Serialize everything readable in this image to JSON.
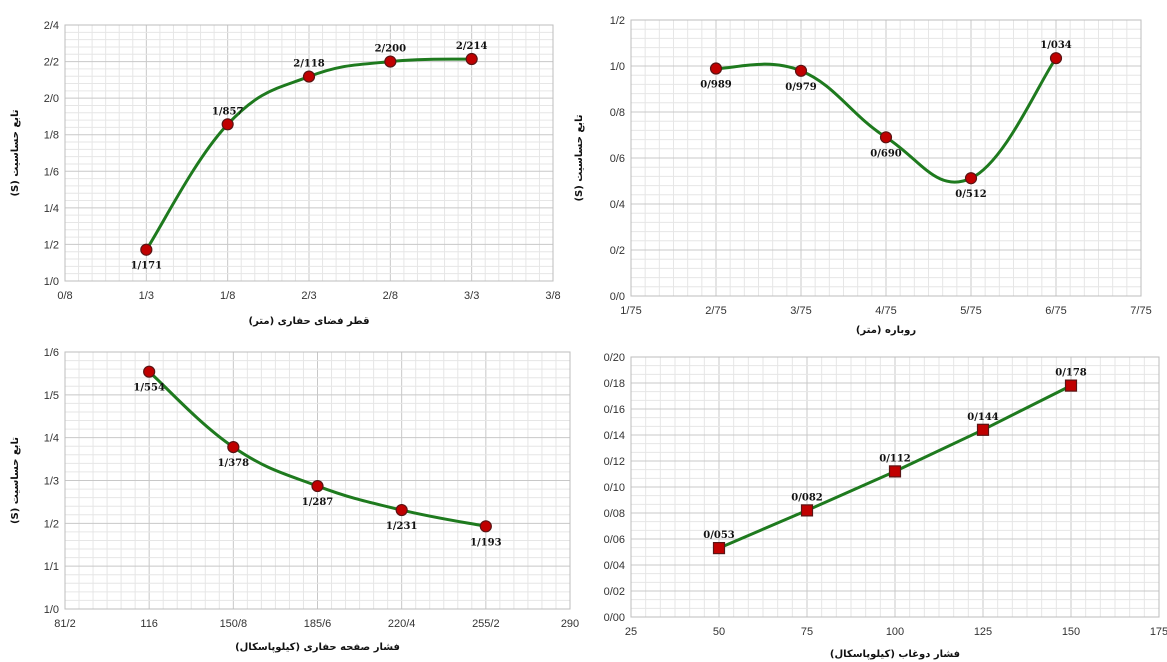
{
  "chart_data": [
    {
      "type": "line",
      "smooth": true,
      "marker": "circle",
      "color": "#1e7a1e",
      "marker_color": "#c00000",
      "x_ticks": [
        "0/8",
        "1/3",
        "1/8",
        "2/3",
        "2/8",
        "3/3",
        "3/8"
      ],
      "xlim": [
        0.8,
        3.8
      ],
      "y_ticks": [
        "1/0",
        "1/2",
        "1/4",
        "1/6",
        "1/8",
        "2/0",
        "2/2",
        "2/4"
      ],
      "ylim": [
        1.0,
        2.4
      ],
      "xlabel": "قطر فضای حفاری (متر)",
      "ylabel": "تابع حساسیت (S)",
      "grid": true,
      "points": [
        {
          "x": 1.3,
          "y": 1.171,
          "label": "1/171",
          "pos": "below"
        },
        {
          "x": 1.8,
          "y": 1.857,
          "label": "1/857",
          "pos": "above"
        },
        {
          "x": 2.3,
          "y": 2.118,
          "label": "2/118",
          "pos": "above"
        },
        {
          "x": 2.8,
          "y": 2.2,
          "label": "2/200",
          "pos": "above"
        },
        {
          "x": 3.3,
          "y": 2.214,
          "label": "2/214",
          "pos": "above"
        }
      ]
    },
    {
      "type": "line",
      "smooth": true,
      "marker": "circle",
      "color": "#1e7a1e",
      "marker_color": "#c00000",
      "x_ticks": [
        "1/75",
        "2/75",
        "3/75",
        "4/75",
        "5/75",
        "6/75",
        "7/75"
      ],
      "xlim": [
        1.75,
        7.75
      ],
      "y_ticks": [
        "0/0",
        "0/2",
        "0/4",
        "0/6",
        "0/8",
        "1/0",
        "1/2"
      ],
      "ylim": [
        0.0,
        1.2
      ],
      "xlabel": "روباره (متر)",
      "ylabel": "تابع حساسیت (S)",
      "grid": true,
      "points": [
        {
          "x": 2.75,
          "y": 0.989,
          "label": "0/989",
          "pos": "below"
        },
        {
          "x": 3.75,
          "y": 0.979,
          "label": "0/979",
          "pos": "below"
        },
        {
          "x": 4.75,
          "y": 0.69,
          "label": "0/690",
          "pos": "below"
        },
        {
          "x": 5.75,
          "y": 0.512,
          "label": "0/512",
          "pos": "below"
        },
        {
          "x": 6.75,
          "y": 1.034,
          "label": "1/034",
          "pos": "above"
        }
      ]
    },
    {
      "type": "line",
      "smooth": true,
      "marker": "circle",
      "color": "#1e7a1e",
      "marker_color": "#c00000",
      "x_ticks": [
        "81/2",
        "116",
        "150/8",
        "185/6",
        "220/4",
        "255/2",
        "290"
      ],
      "xlim": [
        81.2,
        290
      ],
      "y_ticks": [
        "1/0",
        "1/1",
        "1/2",
        "1/3",
        "1/4",
        "1/5",
        "1/6"
      ],
      "ylim": [
        1.0,
        1.6
      ],
      "xlabel": "فشار صفحه حفاری (کیلوپاسکال)",
      "ylabel": "تابع حساسیت (S)",
      "grid": true,
      "points": [
        {
          "x": 116,
          "y": 1.554,
          "label": "1/554",
          "pos": "below"
        },
        {
          "x": 150.8,
          "y": 1.378,
          "label": "1/378",
          "pos": "below"
        },
        {
          "x": 185.6,
          "y": 1.287,
          "label": "1/287",
          "pos": "below"
        },
        {
          "x": 220.4,
          "y": 1.231,
          "label": "1/231",
          "pos": "below"
        },
        {
          "x": 255.2,
          "y": 1.193,
          "label": "1/193",
          "pos": "below"
        }
      ]
    },
    {
      "type": "line",
      "smooth": false,
      "marker": "square",
      "color": "#1e7a1e",
      "marker_color": "#c00000",
      "x_ticks": [
        "25",
        "50",
        "75",
        "100",
        "125",
        "150",
        "175"
      ],
      "xlim": [
        25,
        175
      ],
      "y_ticks": [
        "0/00",
        "0/02",
        "0/04",
        "0/06",
        "0/08",
        "0/10",
        "0/12",
        "0/14",
        "0/16",
        "0/18",
        "0/20"
      ],
      "ylim": [
        0.0,
        0.2
      ],
      "xlabel": "فشار دوغاب (کیلوپاسکال)",
      "ylabel": "",
      "grid": true,
      "points": [
        {
          "x": 50,
          "y": 0.053,
          "label": "0/053",
          "pos": "above"
        },
        {
          "x": 75,
          "y": 0.082,
          "label": "0/082",
          "pos": "above"
        },
        {
          "x": 100,
          "y": 0.112,
          "label": "0/112",
          "pos": "above"
        },
        {
          "x": 125,
          "y": 0.144,
          "label": "0/144",
          "pos": "above"
        },
        {
          "x": 150,
          "y": 0.178,
          "label": "0/178",
          "pos": "above"
        }
      ]
    }
  ]
}
